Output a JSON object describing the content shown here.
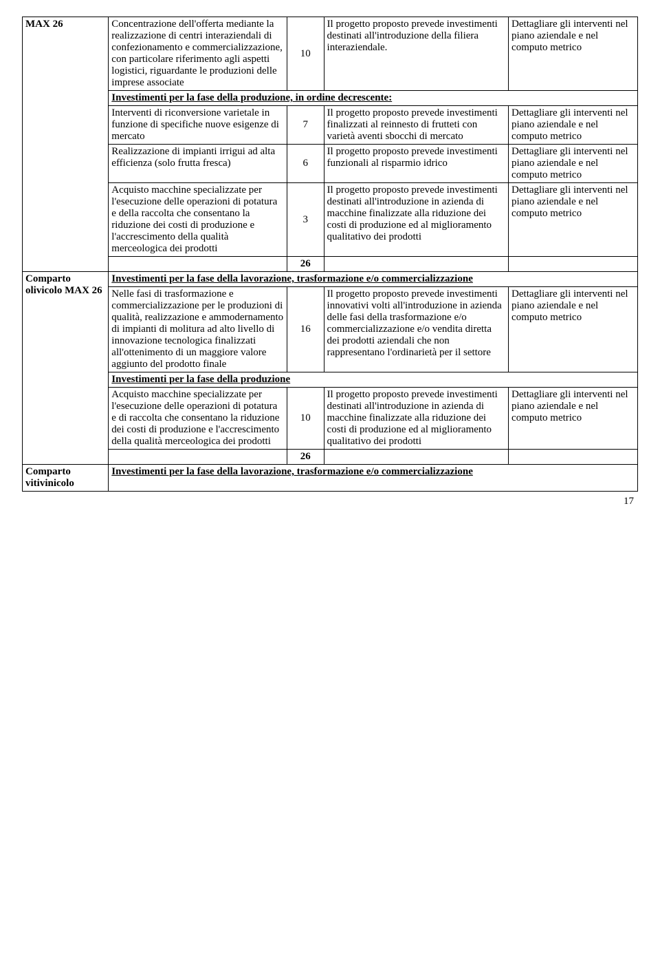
{
  "page_number": "17",
  "labels": {
    "max26_1": "MAX 26",
    "comparto_olivicolo": "Comparto olivicolo MAX 26",
    "comparto_vitivinicolo": "Comparto vitivinicolo"
  },
  "sections": {
    "prod_decr": "Investimenti per la fase della produzione, in ordine decrescente:",
    "lav_trasf": "Investimenti per la fase della lavorazione, trasformazione e/o commercializzazione",
    "prod": "Investimenti per la fase della produzione"
  },
  "note_common": "Dettagliare gli interventi nel piano aziendale e nel computo metrico",
  "rows": {
    "r1_desc": "Concentrazione dell'offerta mediante la realizzazione di centri interaziendali di confezionamento e commercializzazione, con particolare riferimento agli aspetti logistici, riguardante le produzioni delle imprese associate",
    "r1_score": "10",
    "r1_eval": "Il progetto proposto prevede investimenti destinati all'introduzione della filiera interaziendale.",
    "r2_desc": "Interventi di riconversione varietale in funzione di specifiche nuove esigenze di mercato",
    "r2_score": "7",
    "r2_eval": "Il progetto proposto prevede investimenti finalizzati al reinnesto di frutteti con varietà aventi sbocchi di mercato",
    "r3_desc": "Realizzazione di impianti irrigui ad alta efficienza (solo frutta fresca)",
    "r3_score": "6",
    "r3_eval": "Il progetto proposto prevede investimenti funzionali al risparmio idrico",
    "r4_desc": "Acquisto macchine specializzate per l'esecuzione delle operazioni di potatura e della raccolta che consentano la riduzione dei costi di produzione e l'accrescimento della qualità merceologica dei prodotti",
    "r4_score": "3",
    "r4_eval": "Il progetto proposto prevede investimenti destinati all'introduzione in azienda di macchine finalizzate alla riduzione dei costi di produzione ed al miglioramento qualitativo dei prodotti",
    "total1": "26",
    "r5_desc": "Nelle fasi di trasformazione e commercializzazione per le produzioni di qualità, realizzazione e ammodernamento di impianti di molitura ad alto livello di innovazione tecnologica finalizzati all'ottenimento di un maggiore valore aggiunto del prodotto finale",
    "r5_score": "16",
    "r5_eval": "Il progetto proposto prevede investimenti innovativi volti all'introduzione in azienda delle fasi della trasformazione e/o commercializzazione e/o vendita diretta dei prodotti aziendali che non rappresentano l'ordinarietà per il settore",
    "r6_desc": "Acquisto macchine specializzate per l'esecuzione delle operazioni di potatura e di raccolta che consentano la riduzione dei costi di produzione e l'accrescimento della qualità merceologica dei prodotti",
    "r6_score": "10",
    "r6_eval": "Il progetto proposto prevede investimenti destinati all'introduzione in azienda di macchine finalizzate alla riduzione dei costi di produzione ed al miglioramento qualitativo dei prodotti",
    "total2": "26"
  }
}
